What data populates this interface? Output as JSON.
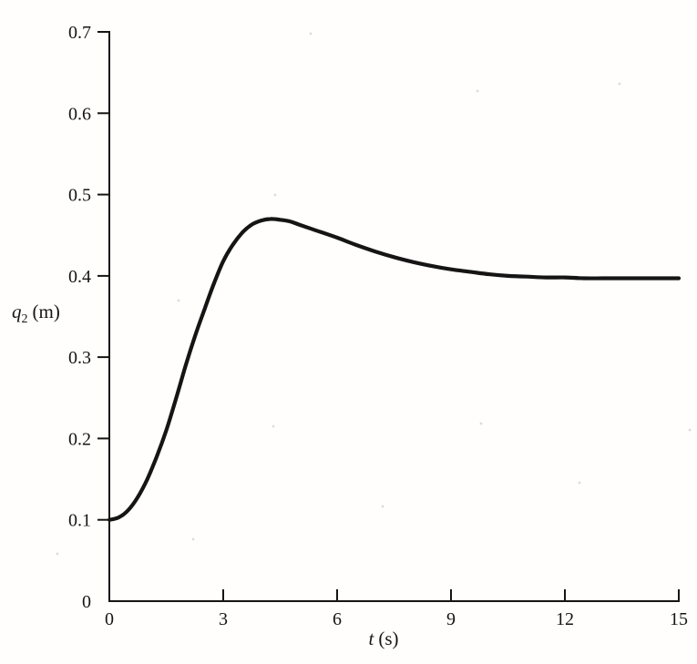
{
  "labels": {
    "y_base": "q",
    "y_sub": "2",
    "y_unit": "(m)",
    "x_base": "t",
    "x_unit": "(s)"
  },
  "chart_data": {
    "type": "line",
    "title": "",
    "xlabel": "t (s)",
    "ylabel": "q2 (m)",
    "xlim": [
      0,
      15
    ],
    "ylim": [
      0,
      0.7
    ],
    "x_ticks": [
      0,
      3,
      6,
      9,
      12,
      15
    ],
    "y_ticks": [
      0,
      0.1,
      0.2,
      0.3,
      0.4,
      0.5,
      0.6,
      0.7
    ],
    "grid": false,
    "legend": false,
    "line_color": "#151515",
    "axis_color": "#151515",
    "background": "#fffefd",
    "series": [
      {
        "name": "q2",
        "x": [
          0,
          0.25,
          0.5,
          0.75,
          1.0,
          1.25,
          1.5,
          1.75,
          2.0,
          2.25,
          2.5,
          2.75,
          3.0,
          3.25,
          3.5,
          3.75,
          4.0,
          4.25,
          4.5,
          4.75,
          5.0,
          5.5,
          6.0,
          6.5,
          7.0,
          7.5,
          8.0,
          8.5,
          9.0,
          9.5,
          10.0,
          10.5,
          11.0,
          11.5,
          12.0,
          12.5,
          13.0,
          13.5,
          14.0,
          14.5,
          15.0
        ],
        "y": [
          0.1,
          0.103,
          0.112,
          0.128,
          0.15,
          0.178,
          0.21,
          0.248,
          0.288,
          0.325,
          0.358,
          0.39,
          0.418,
          0.438,
          0.453,
          0.463,
          0.468,
          0.47,
          0.469,
          0.467,
          0.463,
          0.455,
          0.447,
          0.438,
          0.43,
          0.423,
          0.417,
          0.412,
          0.408,
          0.405,
          0.402,
          0.4,
          0.399,
          0.398,
          0.398,
          0.397,
          0.397,
          0.397,
          0.397,
          0.397,
          0.397
        ]
      }
    ]
  }
}
